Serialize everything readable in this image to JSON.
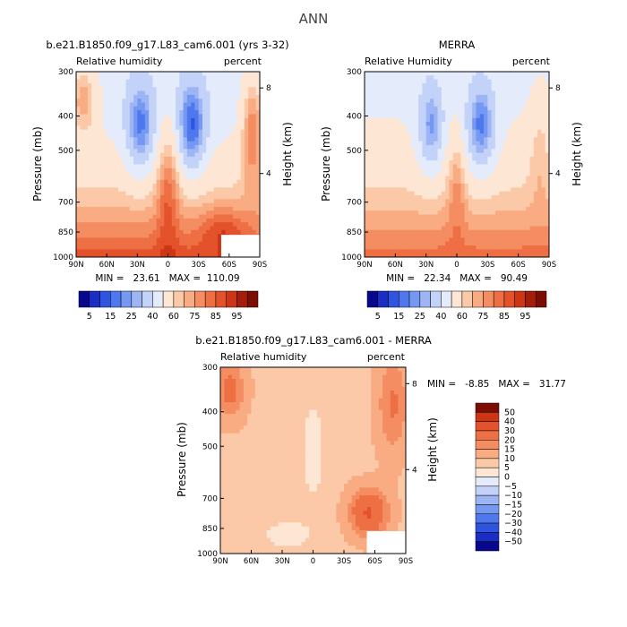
{
  "page": {
    "title": "ANN"
  },
  "colors": {
    "blues": [
      "#08088f",
      "#1a2ec4",
      "#2f55e0",
      "#4f78ee",
      "#7598f2",
      "#9db4f5",
      "#c3d2f8",
      "#e4ebfb"
    ],
    "reds": [
      "#fde6d4",
      "#fcc9a8",
      "#f9ab82",
      "#f48d61",
      "#ee6f44",
      "#e3522a",
      "#cc3614",
      "#a31d08",
      "#7d0c02"
    ]
  },
  "chart_data": [
    {
      "id": "model",
      "type": "heatmap",
      "title": "b.e21.B1850.f09_g17.L83_cam6.001 (yrs 3-32)",
      "left_label": "Relative humidity",
      "right_label": "percent",
      "xlabel": "",
      "ylabel": "Pressure (mb)",
      "y2label": "Height (km)",
      "xticks": [
        "90N",
        "60N",
        "30N",
        "0",
        "30S",
        "60S",
        "90S"
      ],
      "yticks": [
        "300",
        "400",
        "500",
        "700",
        "850",
        "1000"
      ],
      "y2ticks": [
        "8",
        "4"
      ],
      "stats": "MIN =   23.61   MAX =  110.09",
      "min": 23.61,
      "max": 110.09,
      "masked_region": "surface below 850 mb near 60S-90S"
    },
    {
      "id": "obs",
      "type": "heatmap",
      "title": "MERRA",
      "left_label": "Relative Humidity",
      "right_label": "percent",
      "xlabel": "",
      "ylabel": "Pressure (mb)",
      "y2label": "Height (km)",
      "xticks": [
        "90N",
        "60N",
        "30N",
        "0",
        "30S",
        "60S",
        "90S"
      ],
      "yticks": [
        "300",
        "400",
        "500",
        "700",
        "850",
        "1000"
      ],
      "y2ticks": [
        "8",
        "4"
      ],
      "stats": "MIN =   22.34   MAX =   90.49",
      "min": 22.34,
      "max": 90.49
    },
    {
      "id": "diff",
      "type": "heatmap",
      "title": "b.e21.B1850.f09_g17.L83_cam6.001 - MERRA",
      "left_label": "Relative humidity",
      "right_label": "percent",
      "xlabel": "",
      "ylabel": "Pressure (mb)",
      "y2label": "Height (km)",
      "xticks": [
        "90N",
        "60N",
        "30N",
        "0",
        "30S",
        "60S",
        "90S"
      ],
      "yticks": [
        "300",
        "400",
        "500",
        "700",
        "850",
        "1000"
      ],
      "y2ticks": [
        "8",
        "4"
      ],
      "stats": "MIN =   -8.85   MAX =   31.77",
      "min": -8.85,
      "max": 31.77,
      "masked_region": "surface below 850 mb near 60S-90S"
    }
  ],
  "colorbars": {
    "absolute": {
      "orientation": "horizontal",
      "levels": [
        5,
        10,
        15,
        20,
        25,
        30,
        40,
        50,
        60,
        65,
        70,
        75,
        80,
        85,
        90,
        95
      ],
      "labels": [
        "5",
        "15",
        "25",
        "40",
        "60",
        "75",
        "85",
        "95"
      ]
    },
    "difference": {
      "orientation": "vertical",
      "levels": [
        -50,
        -40,
        -30,
        -20,
        -15,
        -10,
        -5,
        0,
        5,
        10,
        15,
        20,
        30,
        40,
        50
      ],
      "labels": [
        "50",
        "40",
        "30",
        "20",
        "15",
        "10",
        "5",
        "0",
        "−5",
        "−10",
        "−15",
        "−20",
        "−30",
        "−40",
        "−50"
      ]
    }
  }
}
